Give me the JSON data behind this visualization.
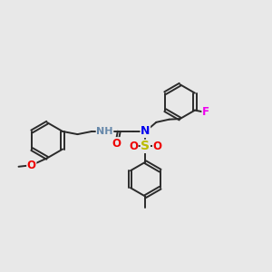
{
  "bg_color": "#e8e8e8",
  "bond_color": "#2a2a2a",
  "bond_width": 1.4,
  "atom_colors": {
    "N": "#0000ee",
    "NH": "#6688aa",
    "O": "#ee0000",
    "S": "#bbbb00",
    "F": "#ee00ee",
    "C": "#2a2a2a"
  }
}
